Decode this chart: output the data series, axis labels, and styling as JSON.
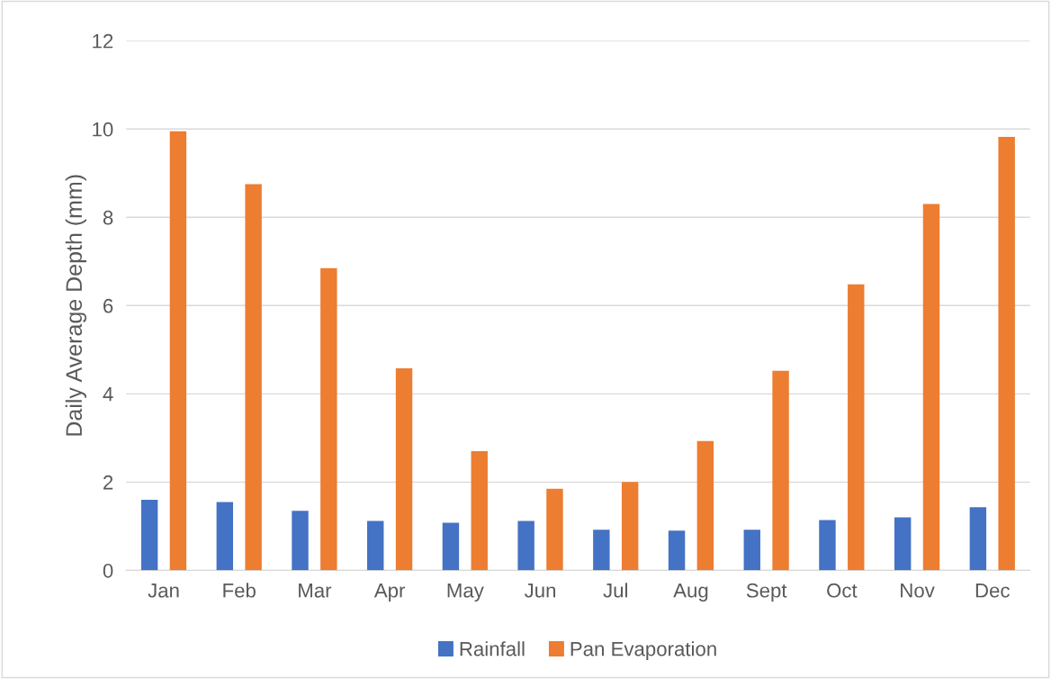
{
  "chart_data": {
    "type": "bar",
    "ylabel": "Daily Average Depth (mm)",
    "categories": [
      "Jan",
      "Feb",
      "Mar",
      "Apr",
      "May",
      "Jun",
      "Jul",
      "Aug",
      "Sept",
      "Oct",
      "Nov",
      "Dec"
    ],
    "series": [
      {
        "name": "Rainfall",
        "color": "#4472c4",
        "values": [
          1.6,
          1.55,
          1.35,
          1.12,
          1.08,
          1.12,
          0.92,
          0.9,
          0.92,
          1.14,
          1.2,
          1.43
        ]
      },
      {
        "name": "Pan Evaporation",
        "color": "#ed7d31",
        "values": [
          9.95,
          8.75,
          6.85,
          4.58,
          2.7,
          1.85,
          2.0,
          2.93,
          4.52,
          6.48,
          8.3,
          9.82
        ]
      }
    ],
    "ylim": [
      0,
      12
    ],
    "yticks": [
      0,
      2,
      4,
      6,
      8,
      10,
      12
    ],
    "grid": "y",
    "legend": "bottom"
  }
}
